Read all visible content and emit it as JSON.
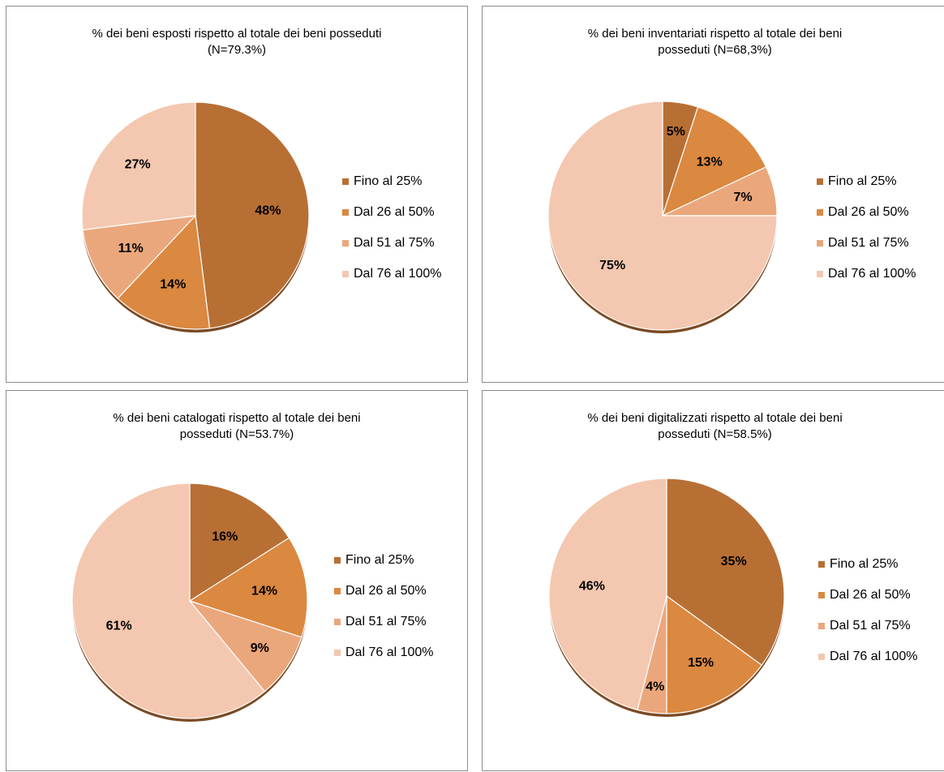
{
  "legend_labels": [
    "Fino al 25%",
    "Dal 26 al 50%",
    "Dal 51 al 75%",
    "Dal 76 al 100%"
  ],
  "colors": [
    "#b86f34",
    "#db8840",
    "#eba77c",
    "#f4c7b0"
  ],
  "chart_data": [
    {
      "type": "pie",
      "title_line1": "% dei beni esposti rispetto al totale dei beni posseduti",
      "title_line2": "(N=79.3%)",
      "categories": [
        "Fino al 25%",
        "Dal 26 al 50%",
        "Dal 51 al 75%",
        "Dal 76 al 100%"
      ],
      "values": [
        48,
        14,
        11,
        27
      ],
      "value_labels": [
        "48%",
        "14%",
        "11%",
        "27%"
      ],
      "legend_position": "right"
    },
    {
      "type": "pie",
      "title_line1": "% dei beni inventariati rispetto al totale dei beni",
      "title_line2": "posseduti (N=68,3%)",
      "categories": [
        "Fino al 25%",
        "Dal 26 al 50%",
        "Dal 51 al 75%",
        "Dal 76 al 100%"
      ],
      "values": [
        5,
        13,
        7,
        75
      ],
      "value_labels": [
        "5%",
        "13%",
        "7%",
        "75%"
      ],
      "legend_position": "right"
    },
    {
      "type": "pie",
      "title_line1": "% dei beni catalogati rispetto al totale dei beni",
      "title_line2": "posseduti (N=53.7%)",
      "categories": [
        "Fino al 25%",
        "Dal 26 al 50%",
        "Dal 51 al 75%",
        "Dal 76 al 100%"
      ],
      "values": [
        16,
        14,
        9,
        61
      ],
      "value_labels": [
        "16%",
        "14%",
        "9%",
        "61%"
      ],
      "legend_position": "right"
    },
    {
      "type": "pie",
      "title_line1": "% dei beni digitalizzati rispetto al totale dei beni",
      "title_line2": "posseduti (N=58.5%)",
      "categories": [
        "Fino al 25%",
        "Dal 26 al 50%",
        "Dal 51 al 75%",
        "Dal 76 al 100%"
      ],
      "values": [
        35,
        15,
        4,
        46
      ],
      "value_labels": [
        "35%",
        "15%",
        "4%",
        "46%"
      ],
      "legend_position": "right"
    }
  ]
}
